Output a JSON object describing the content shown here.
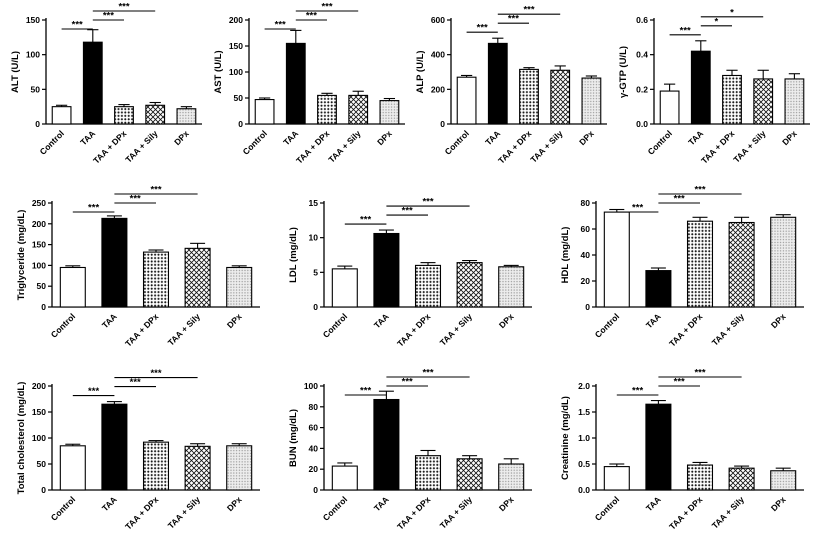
{
  "figure": {
    "description": "Panel of ten bar charts comparing serum biochemistry across treatment groups",
    "groups": [
      "Control",
      "TAA",
      "TAA + DPx",
      "TAA + Sily",
      "DPx"
    ]
  },
  "bar_styles": [
    "white",
    "black",
    "dots",
    "crosshatch",
    "finedots"
  ],
  "colors": {
    "bar_white": "#ffffff",
    "bar_black": "#000000",
    "axis": "#000000",
    "background": "#ffffff"
  },
  "chart_data": [
    {
      "type": "bar",
      "ylabel": "ALT (U/L)",
      "ylim": [
        0,
        150
      ],
      "yticks": [
        "0",
        "50",
        "100",
        "150"
      ],
      "categories": [
        "Control",
        "TAA",
        "TAA + DPx",
        "TAA + Sily",
        "DPx"
      ],
      "values": [
        25,
        118,
        25,
        27,
        22
      ],
      "errors": [
        2,
        18,
        3,
        4,
        3
      ],
      "significance": [
        {
          "from": 0,
          "to": 1,
          "label": "***",
          "level": 1
        },
        {
          "from": 1,
          "to": 2,
          "label": "***",
          "level": 2
        },
        {
          "from": 1,
          "to": 3,
          "label": "***",
          "level": 3
        }
      ]
    },
    {
      "type": "bar",
      "ylabel": "AST (U/L)",
      "ylim": [
        0,
        200
      ],
      "yticks": [
        "0",
        "50",
        "100",
        "150",
        "200"
      ],
      "categories": [
        "Control",
        "TAA",
        "TAA + DPx",
        "TAA + Sily",
        "DPx"
      ],
      "values": [
        47,
        155,
        55,
        55,
        45
      ],
      "errors": [
        3,
        25,
        4,
        8,
        4
      ],
      "significance": [
        {
          "from": 0,
          "to": 1,
          "label": "***",
          "level": 1
        },
        {
          "from": 1,
          "to": 2,
          "label": "***",
          "level": 2
        },
        {
          "from": 1,
          "to": 3,
          "label": "***",
          "level": 3
        }
      ]
    },
    {
      "type": "bar",
      "ylabel": "ALP (U/L)",
      "ylim": [
        0,
        600
      ],
      "yticks": [
        "0",
        "200",
        "400",
        "600"
      ],
      "categories": [
        "Control",
        "TAA",
        "TAA + DPx",
        "TAA + Sily",
        "DPx"
      ],
      "values": [
        270,
        465,
        315,
        310,
        265
      ],
      "errors": [
        10,
        30,
        10,
        25,
        12
      ],
      "significance": [
        {
          "from": 0,
          "to": 1,
          "label": "***",
          "level": 1
        },
        {
          "from": 1,
          "to": 2,
          "label": "***",
          "level": 2
        },
        {
          "from": 1,
          "to": 3,
          "label": "***",
          "level": 3
        }
      ]
    },
    {
      "type": "bar",
      "ylabel": "γ-GTP (U/L)",
      "ylim": [
        0,
        0.6
      ],
      "yticks": [
        "0.0",
        "0.2",
        "0.4",
        "0.6"
      ],
      "categories": [
        "Control",
        "TAA",
        "TAA + DPx",
        "TAA + Sily",
        "DPx"
      ],
      "values": [
        0.19,
        0.42,
        0.28,
        0.26,
        0.26
      ],
      "errors": [
        0.04,
        0.06,
        0.03,
        0.05,
        0.03
      ],
      "significance": [
        {
          "from": 0,
          "to": 1,
          "label": "***",
          "level": 1
        },
        {
          "from": 1,
          "to": 2,
          "label": "*",
          "level": 2
        },
        {
          "from": 1,
          "to": 3,
          "label": "*",
          "level": 3
        }
      ]
    },
    {
      "type": "bar",
      "ylabel": "Triglyceride (mg/dL)",
      "ylim": [
        0,
        250
      ],
      "yticks": [
        "0",
        "50",
        "100",
        "150",
        "200",
        "250"
      ],
      "categories": [
        "Control",
        "TAA",
        "TAA + DPx",
        "TAA + Sily",
        "DPx"
      ],
      "values": [
        95,
        213,
        132,
        141,
        95
      ],
      "errors": [
        4,
        6,
        5,
        12,
        4
      ],
      "significance": [
        {
          "from": 0,
          "to": 1,
          "label": "***",
          "level": 1
        },
        {
          "from": 1,
          "to": 2,
          "label": "***",
          "level": 2
        },
        {
          "from": 1,
          "to": 3,
          "label": "***",
          "level": 3
        }
      ]
    },
    {
      "type": "bar",
      "ylabel": "LDL (mg/dL)",
      "ylim": [
        0,
        15
      ],
      "yticks": [
        "0",
        "5",
        "10",
        "15"
      ],
      "categories": [
        "Control",
        "TAA",
        "TAA + DPx",
        "TAA + Sily",
        "DPx"
      ],
      "values": [
        5.5,
        10.6,
        6.0,
        6.4,
        5.8
      ],
      "errors": [
        0.4,
        0.5,
        0.4,
        0.3,
        0.2
      ],
      "significance": [
        {
          "from": 0,
          "to": 1,
          "label": "***",
          "level": 1
        },
        {
          "from": 1,
          "to": 2,
          "label": "***",
          "level": 2
        },
        {
          "from": 1,
          "to": 3,
          "label": "***",
          "level": 3
        }
      ]
    },
    {
      "type": "bar",
      "ylabel": "HDL (mg/dL)",
      "ylim": [
        0,
        80
      ],
      "yticks": [
        "0",
        "20",
        "40",
        "60",
        "80"
      ],
      "categories": [
        "Control",
        "TAA",
        "TAA + DPx",
        "TAA + Sily",
        "DPx"
      ],
      "values": [
        73,
        28,
        66,
        65,
        69
      ],
      "errors": [
        2,
        2,
        3,
        4,
        2
      ],
      "significance": [
        {
          "from": 0,
          "to": 1,
          "label": "***",
          "level": 1
        },
        {
          "from": 1,
          "to": 2,
          "label": "***",
          "level": 2
        },
        {
          "from": 1,
          "to": 3,
          "label": "***",
          "level": 3
        }
      ]
    },
    {
      "type": "bar",
      "ylabel": "Total cholesterol (mg/dL)",
      "ylim": [
        0,
        200
      ],
      "yticks": [
        "0",
        "50",
        "100",
        "150",
        "200"
      ],
      "categories": [
        "Control",
        "TAA",
        "TAA + DPx",
        "TAA + Sily",
        "DPx"
      ],
      "values": [
        85,
        165,
        92,
        84,
        85
      ],
      "errors": [
        3,
        5,
        3,
        5,
        4
      ],
      "significance": [
        {
          "from": 0,
          "to": 1,
          "label": "***",
          "level": 1
        },
        {
          "from": 1,
          "to": 2,
          "label": "***",
          "level": 2
        },
        {
          "from": 1,
          "to": 3,
          "label": "***",
          "level": 3
        }
      ]
    },
    {
      "type": "bar",
      "ylabel": "BUN (mg/dL)",
      "ylim": [
        0,
        100
      ],
      "yticks": [
        "0",
        "20",
        "40",
        "60",
        "80",
        "100"
      ],
      "categories": [
        "Control",
        "TAA",
        "TAA + DPx",
        "TAA + Sily",
        "DPx"
      ],
      "values": [
        23,
        87,
        33,
        30,
        25
      ],
      "errors": [
        3,
        8,
        5,
        3,
        5
      ],
      "significance": [
        {
          "from": 0,
          "to": 1,
          "label": "***",
          "level": 1
        },
        {
          "from": 1,
          "to": 2,
          "label": "***",
          "level": 2
        },
        {
          "from": 1,
          "to": 3,
          "label": "***",
          "level": 3
        }
      ]
    },
    {
      "type": "bar",
      "ylabel": "Creatinine (mg/dL)",
      "ylim": [
        0,
        2.0
      ],
      "yticks": [
        "0.0",
        "0.5",
        "1.0",
        "1.5",
        "2.0"
      ],
      "categories": [
        "Control",
        "TAA",
        "TAA + DPx",
        "TAA + Sily",
        "DPx"
      ],
      "values": [
        0.45,
        1.65,
        0.48,
        0.42,
        0.37
      ],
      "errors": [
        0.05,
        0.07,
        0.05,
        0.04,
        0.05
      ],
      "significance": [
        {
          "from": 0,
          "to": 1,
          "label": "***",
          "level": 1
        },
        {
          "from": 1,
          "to": 2,
          "label": "***",
          "level": 2
        },
        {
          "from": 1,
          "to": 3,
          "label": "***",
          "level": 3
        }
      ]
    }
  ]
}
